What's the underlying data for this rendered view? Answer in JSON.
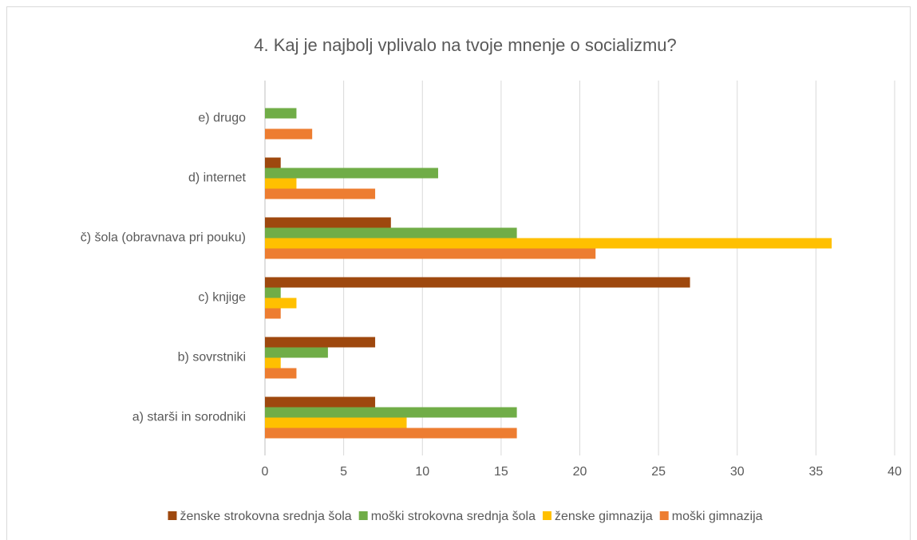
{
  "chart_data": {
    "type": "bar",
    "orientation": "horizontal",
    "title": "4. Kaj je najbolj vplivalo na tvoje mnenje o socializmu?",
    "categories": [
      "a) starši in sorodniki",
      "b) sovrstniki",
      "c) knjige",
      "č) šola (obravnava pri pouku)",
      "d) internet",
      "e) drugo"
    ],
    "series": [
      {
        "name": "ženske strokovna srednja šola",
        "color": "#9e480e",
        "values": [
          7,
          7,
          27,
          8,
          1,
          0
        ]
      },
      {
        "name": "moški strokovna srednja šola",
        "color": "#70ad47",
        "values": [
          16,
          4,
          1,
          16,
          11,
          2
        ]
      },
      {
        "name": "ženske gimnazija",
        "color": "#ffc000",
        "values": [
          9,
          1,
          2,
          36,
          2,
          0
        ]
      },
      {
        "name": "moški gimnazija",
        "color": "#ed7d31",
        "values": [
          16,
          2,
          1,
          21,
          7,
          3
        ]
      }
    ],
    "xlim": [
      0,
      40
    ],
    "xticks": [
      0,
      5,
      10,
      15,
      20,
      25,
      30,
      35,
      40
    ],
    "grid": true,
    "legend": "bottom"
  }
}
